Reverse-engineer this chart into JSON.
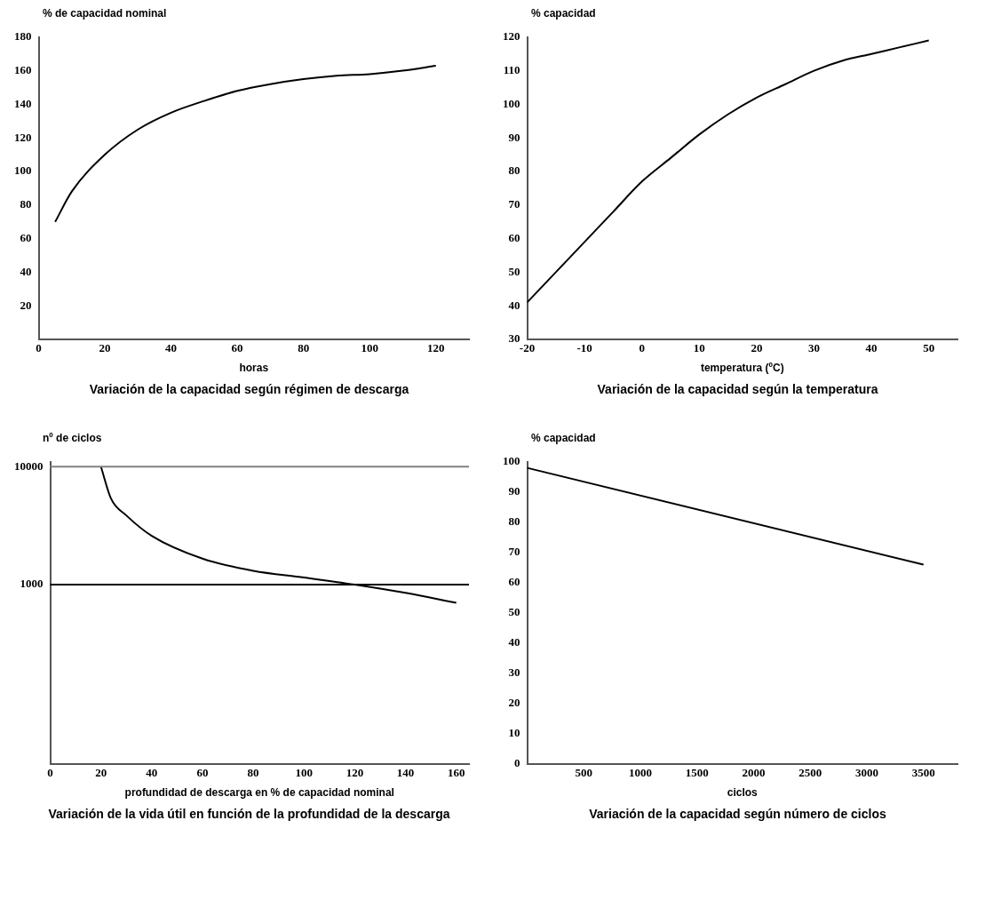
{
  "chart_data": [
    {
      "type": "line",
      "title": "Variación de la capacidad según régimen de descarga",
      "xlabel": "horas",
      "ylabel": "% de capacidad nominal",
      "x": [
        5,
        10,
        20,
        30,
        40,
        50,
        60,
        70,
        80,
        90,
        100,
        110,
        120
      ],
      "values": [
        70,
        88,
        110,
        125,
        135,
        142,
        148,
        152,
        155,
        157,
        158,
        160,
        163
      ],
      "color": "#000000",
      "xlim": [
        0,
        130
      ],
      "xticks": [
        0,
        20,
        40,
        60,
        80,
        100,
        120
      ],
      "ylim": [
        0,
        180
      ],
      "yticks": [
        20,
        40,
        60,
        80,
        100,
        120,
        140,
        160,
        180
      ],
      "grid": false,
      "legend": false
    },
    {
      "type": "line",
      "title": "Variación de la capacidad según la temperatura",
      "xlabel": "temperatura (ºC)",
      "ylabel": "% capacidad",
      "x": [
        -20,
        -15,
        -10,
        -5,
        0,
        5,
        10,
        15,
        20,
        25,
        30,
        35,
        40,
        45,
        50
      ],
      "values": [
        41,
        50,
        59,
        68,
        77,
        84,
        91,
        97,
        102,
        106,
        110,
        113,
        115,
        117,
        119
      ],
      "color": "#000000",
      "xlim": [
        -20,
        55
      ],
      "xticks": [
        -20,
        -10,
        0,
        10,
        20,
        30,
        40,
        50
      ],
      "ylim": [
        30,
        120
      ],
      "yticks": [
        30,
        40,
        50,
        60,
        70,
        80,
        90,
        100,
        110,
        120
      ],
      "grid": false,
      "legend": false
    },
    {
      "type": "line",
      "title": "Variación de la vida útil en función de la profundidad de la descarga",
      "xlabel": "profundidad de descarga en % de capacidad nominal",
      "ylabel": "nº de ciclos",
      "x": [
        20,
        24,
        30,
        40,
        60,
        80,
        100,
        120,
        140,
        160
      ],
      "values": [
        10000,
        5340,
        3860,
        2590,
        1660,
        1310,
        1150,
        1000,
        850,
        700
      ],
      "color": "#000000",
      "log": "y",
      "xlim": [
        0,
        165
      ],
      "xticks": [
        0,
        20,
        40,
        60,
        80,
        100,
        120,
        140,
        160
      ],
      "ylim": [
        30,
        11000
      ],
      "yticks": [
        1000,
        10000
      ],
      "ref_lines": [
        {
          "axis": "y",
          "value": 10000,
          "color": "#808080"
        },
        {
          "axis": "y",
          "value": 1000,
          "color": "#000000"
        }
      ],
      "grid": false,
      "legend": false
    },
    {
      "type": "line",
      "title": "Variación de la capacidad según número de ciclos",
      "xlabel": "ciclos",
      "ylabel": "% capacidad",
      "x": [
        0,
        3500
      ],
      "values": [
        98,
        66
      ],
      "color": "#000000",
      "xlim": [
        0,
        3800
      ],
      "xticks": [
        500,
        1000,
        1500,
        2000,
        2500,
        3000,
        3500
      ],
      "ylim": [
        0,
        100
      ],
      "yticks": [
        0,
        10,
        20,
        30,
        40,
        50,
        60,
        70,
        80,
        90,
        100
      ],
      "grid": false,
      "legend": false
    }
  ]
}
